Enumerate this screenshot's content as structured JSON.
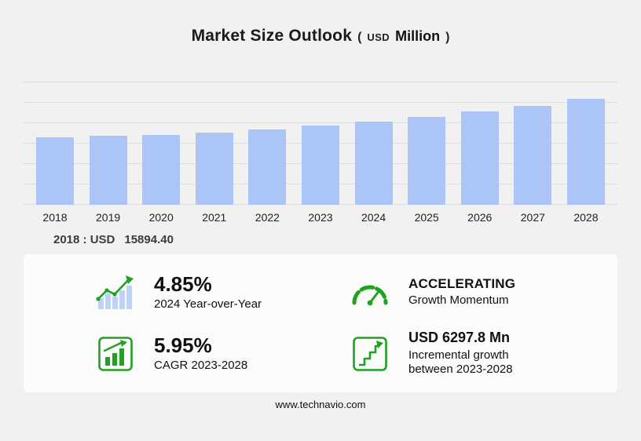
{
  "title": {
    "main": "Market Size Outlook",
    "paren_open": "(",
    "currency": "USD",
    "unit": "Million",
    "paren_close": ")"
  },
  "base_year": {
    "prefix": "2018 : USD",
    "value": "15894.40"
  },
  "chart_data": {
    "type": "bar",
    "title": "Market Size Outlook (USD Million)",
    "categories": [
      "2018",
      "2019",
      "2020",
      "2021",
      "2022",
      "2023",
      "2024",
      "2025",
      "2026",
      "2027",
      "2028"
    ],
    "values": [
      15894.4,
      16403,
      16550,
      17146,
      17901,
      18794,
      19705,
      20789,
      22036,
      23468,
      25092
    ],
    "ylabel": "USD Million",
    "ylim": [
      0,
      26000
    ],
    "grid": true,
    "legend": "none",
    "bar_color": "#abc6f6"
  },
  "stats": [
    {
      "id": "yoy",
      "value": "4.85%",
      "label": "2024 Year-over-Year"
    },
    {
      "id": "momentum",
      "value": "ACCELERATING",
      "label": "Growth Momentum"
    },
    {
      "id": "cagr",
      "value": "5.95%",
      "label": "CAGR 2023-2028"
    },
    {
      "id": "incremental",
      "value": "USD 6297.8 Mn",
      "label": "Incremental growth between 2023-2028"
    }
  ],
  "footer": {
    "url": "www.technavio.com"
  },
  "colors": {
    "background": "#f1f1f1",
    "panel": "#fcfcfc",
    "bar": "#abc6f6",
    "accent_green": "#21a121",
    "grid_line": "#dddddd"
  }
}
